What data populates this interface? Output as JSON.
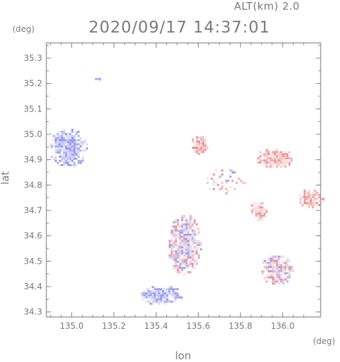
{
  "header": {
    "altitude_label": "ALT(km) 2.0",
    "timestamp": "2020/09/17 14:37:01"
  },
  "axes": {
    "y_unit": "(deg)",
    "x_unit": "(deg)",
    "y_label": "lat",
    "x_label": "lon",
    "x_ticks": [
      "135.0",
      "135.2",
      "135.4",
      "135.6",
      "135.8",
      "136.0"
    ],
    "y_ticks": [
      "35.3",
      "35.2",
      "35.1",
      "35.0",
      "34.9",
      "34.8",
      "34.7",
      "34.6",
      "34.5",
      "34.4",
      "34.3"
    ]
  },
  "map": {
    "xlim": [
      134.88,
      136.18
    ],
    "ylim": [
      34.28,
      35.36
    ],
    "colors": {
      "approaching": "#8c8cf0",
      "receding": "#f08c8c",
      "frame": "#888888"
    },
    "echo_regions": [
      {
        "name": "northwest-cell",
        "lon": 134.98,
        "lat": 34.95,
        "r_lon": 0.09,
        "r_lat": 0.08,
        "polarity": "approaching"
      },
      {
        "name": "north-small-echo",
        "lon": 135.12,
        "lat": 35.22,
        "r_lon": 0.02,
        "r_lat": 0.01,
        "polarity": "approaching"
      },
      {
        "name": "central-north-cell",
        "lon": 135.6,
        "lat": 34.96,
        "r_lon": 0.04,
        "r_lat": 0.04,
        "polarity": "receding"
      },
      {
        "name": "northeast-cell",
        "lon": 135.96,
        "lat": 34.91,
        "r_lon": 0.09,
        "r_lat": 0.04,
        "polarity": "receding"
      },
      {
        "name": "east-cell",
        "lon": 135.88,
        "lat": 34.7,
        "r_lon": 0.04,
        "r_lat": 0.04,
        "polarity": "receding"
      },
      {
        "name": "far-east-cell",
        "lon": 136.13,
        "lat": 34.75,
        "r_lon": 0.06,
        "r_lat": 0.04,
        "polarity": "receding"
      },
      {
        "name": "central-cell",
        "lon": 135.53,
        "lat": 34.57,
        "r_lon": 0.08,
        "r_lat": 0.12,
        "polarity": "mixed"
      },
      {
        "name": "southeast-cell",
        "lon": 135.97,
        "lat": 34.47,
        "r_lon": 0.08,
        "r_lat": 0.06,
        "polarity": "mixed"
      },
      {
        "name": "southwest-cell",
        "lon": 135.42,
        "lat": 34.37,
        "r_lon": 0.1,
        "r_lat": 0.04,
        "polarity": "approaching"
      },
      {
        "name": "scattered-line",
        "lon": 135.72,
        "lat": 34.82,
        "r_lon": 0.1,
        "r_lat": 0.05,
        "polarity": "mixed"
      }
    ]
  }
}
